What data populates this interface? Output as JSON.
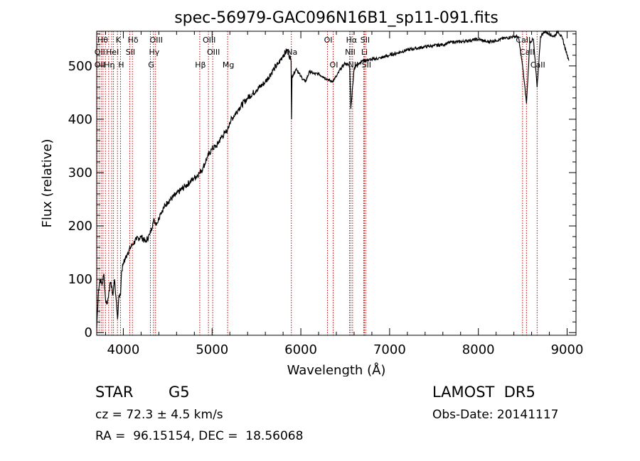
{
  "chart_data": {
    "type": "line",
    "title": "spec-56979-GAC096N16B1_sp11-091.fits",
    "xlabel": "Wavelength (Å)",
    "ylabel": "Flux (relative)",
    "xlim": [
      3700,
      9100
    ],
    "ylim": [
      -5,
      565
    ],
    "xticks": [
      4000,
      5000,
      6000,
      7000,
      8000,
      9000
    ],
    "yticks": [
      0,
      100,
      200,
      300,
      400,
      500
    ],
    "line_color": "#000000",
    "marker_color": "#cc0000",
    "series": [
      {
        "x": [
          3700,
          3720,
          3740,
          3760,
          3780,
          3800,
          3820,
          3840,
          3860,
          3880,
          3900,
          3920,
          3935,
          3950,
          3968,
          3980,
          4000,
          4050,
          4101,
          4150,
          4200,
          4250,
          4300,
          4340,
          4380,
          4420,
          4500,
          4600,
          4700,
          4800,
          4861,
          4900,
          4950,
          5000,
          5050,
          5100,
          5150,
          5175,
          5200,
          5300,
          5400,
          5500,
          5600,
          5700,
          5750,
          5800,
          5850,
          5890,
          5895,
          5900,
          5950,
          6000,
          6050,
          6100,
          6150,
          6200,
          6250,
          6300,
          6350,
          6400,
          6450,
          6500,
          6550,
          6563,
          6600,
          6650,
          6700,
          6800,
          6900,
          7000,
          7100,
          7200,
          7300,
          7400,
          7500,
          7600,
          7700,
          7800,
          7900,
          8000,
          8100,
          8200,
          8300,
          8400,
          8450,
          8498,
          8542,
          8580,
          8620,
          8662,
          8700,
          8750,
          8800,
          8850,
          8900,
          8950,
          9000,
          9020
        ],
        "y": [
          10,
          80,
          100,
          90,
          110,
          60,
          55,
          80,
          95,
          70,
          100,
          60,
          25,
          70,
          70,
          115,
          130,
          150,
          165,
          175,
          180,
          170,
          185,
          210,
          205,
          225,
          245,
          260,
          275,
          290,
          300,
          310,
          330,
          345,
          350,
          365,
          375,
          380,
          395,
          420,
          440,
          455,
          470,
          495,
          505,
          520,
          530,
          510,
          400,
          480,
          495,
          480,
          470,
          490,
          485,
          485,
          480,
          475,
          470,
          480,
          495,
          505,
          500,
          420,
          495,
          505,
          510,
          512,
          515,
          520,
          525,
          530,
          533,
          536,
          538,
          540,
          545,
          545,
          548,
          550,
          545,
          548,
          552,
          555,
          555,
          500,
          430,
          545,
          550,
          460,
          555,
          565,
          560,
          555,
          565,
          550,
          520,
          510
        ]
      }
    ],
    "lines": [
      {
        "wl": 3704,
        "label": ""
      },
      {
        "wl": 3727,
        "label": "OII"
      },
      {
        "wl": 3750,
        "label": ""
      },
      {
        "wl": 3771,
        "label": "Hθ"
      },
      {
        "wl": 3798,
        "label": ""
      },
      {
        "wl": 3835,
        "label": "Hη"
      },
      {
        "wl": 3869,
        "label": "HeI"
      },
      {
        "wl": 3889,
        "label": ""
      },
      {
        "wl": 3934,
        "label": "K"
      },
      {
        "wl": 3968,
        "label": "H"
      },
      {
        "wl": 4072,
        "label": "SII"
      },
      {
        "wl": 4102,
        "label": "Hδ"
      },
      {
        "wl": 4305,
        "label": "G"
      },
      {
        "wl": 4340,
        "label": "Hγ"
      },
      {
        "wl": 4363,
        "label": "OIII"
      },
      {
        "wl": 4861,
        "label": "Hβ"
      },
      {
        "wl": 4959,
        "label": "OIII"
      },
      {
        "wl": 5007,
        "label": "OIII"
      },
      {
        "wl": 5175,
        "label": "Mg"
      },
      {
        "wl": 5893,
        "label": "Na"
      },
      {
        "wl": 6300,
        "label": "OI"
      },
      {
        "wl": 6364,
        "label": "OI"
      },
      {
        "wl": 6548,
        "label": "NII"
      },
      {
        "wl": 6563,
        "label": "Hα"
      },
      {
        "wl": 6583,
        "label": "NII"
      },
      {
        "wl": 6708,
        "label": "Li"
      },
      {
        "wl": 6716,
        "label": "SII"
      },
      {
        "wl": 6731,
        "label": "SII"
      },
      {
        "wl": 8498,
        "label": "CaII"
      },
      {
        "wl": 8542,
        "label": "CaII"
      },
      {
        "wl": 8662,
        "label": "CaII"
      }
    ],
    "line_label_texts": [
      {
        "text": "Hθ",
        "row": 0,
        "near": 3760
      },
      {
        "text": "K",
        "row": 0,
        "near": 3934
      },
      {
        "text": "Hδ",
        "row": 0,
        "near": 4102
      },
      {
        "text": "OIII",
        "row": 0,
        "near": 4363
      },
      {
        "text": "OIII",
        "row": 0,
        "near": 4959
      },
      {
        "text": "OI",
        "row": 0,
        "near": 6300
      },
      {
        "text": "Hα",
        "row": 0,
        "near": 6563
      },
      {
        "text": "SII",
        "row": 0,
        "near": 6716
      },
      {
        "text": "CaII",
        "row": 0,
        "near": 8498
      },
      {
        "text": "OII",
        "row": 1,
        "near": 3727
      },
      {
        "text": "HeI",
        "row": 1,
        "near": 3869
      },
      {
        "text": "SII",
        "row": 1,
        "near": 4072
      },
      {
        "text": "Hγ",
        "row": 1,
        "near": 4340
      },
      {
        "text": "OIII",
        "row": 1,
        "near": 5007
      },
      {
        "text": "Na",
        "row": 1,
        "near": 5893
      },
      {
        "text": "NII",
        "row": 1,
        "near": 6548
      },
      {
        "text": "Li",
        "row": 1,
        "near": 6708
      },
      {
        "text": "CaII",
        "row": 1,
        "near": 8542
      },
      {
        "text": "OII",
        "row": 2,
        "near": 3727
      },
      {
        "text": "Hη",
        "row": 2,
        "near": 3835
      },
      {
        "text": "H",
        "row": 2,
        "near": 3968
      },
      {
        "text": "G",
        "row": 2,
        "near": 4305
      },
      {
        "text": "Hβ",
        "row": 2,
        "near": 4861
      },
      {
        "text": "Mg",
        "row": 2,
        "near": 5175
      },
      {
        "text": "OI",
        "row": 2,
        "near": 6364
      },
      {
        "text": "NII",
        "row": 2,
        "near": 6583
      },
      {
        "text": "SII",
        "row": 2,
        "near": 6731
      },
      {
        "text": "CaII",
        "row": 2,
        "near": 8662
      }
    ]
  },
  "info": {
    "object_type": "STAR",
    "subclass": "G5",
    "survey": "LAMOST  DR5",
    "redshift": "cz = 72.3 ± 4.5 km/s",
    "obs_date": "Obs-Date: 20141117",
    "coords": "RA =  96.15154, DEC =  18.56068"
  }
}
